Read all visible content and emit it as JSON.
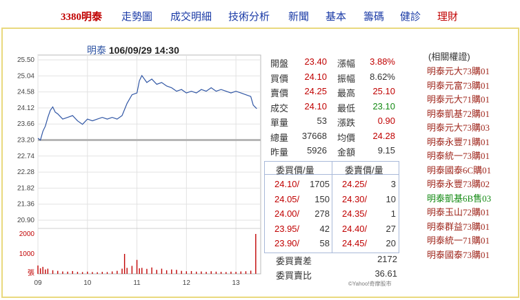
{
  "nav": {
    "items": [
      {
        "label": "3380明泰",
        "style": "active"
      },
      {
        "label": "走勢圖",
        "style": "blue"
      },
      {
        "label": "成交明細",
        "style": "blue"
      },
      {
        "label": "技術分析",
        "style": "blue"
      },
      {
        "label": "新聞",
        "style": "blue"
      },
      {
        "label": "基本",
        "style": "blue"
      },
      {
        "label": "籌碼",
        "style": "blue"
      },
      {
        "label": "健診",
        "style": "blue"
      },
      {
        "label": "理財",
        "style": "red"
      }
    ]
  },
  "chart_header": {
    "name": "明泰",
    "datetime": "106/09/29 14:30"
  },
  "chart_data": {
    "type": "line",
    "title": "明泰 106/09/29 14:30",
    "price_axis": {
      "ticks": [
        "25.50",
        "25.04",
        "24.58",
        "24.12",
        "23.66",
        "23.20",
        "22.74",
        "22.28",
        "21.82",
        "21.36",
        "20.90"
      ],
      "ylim": [
        20.9,
        25.5
      ]
    },
    "reference_price": 23.2,
    "time_axis": {
      "ticks": [
        "09",
        "10",
        "11",
        "12",
        "13"
      ]
    },
    "volume_axis": {
      "ticks": [
        "2000",
        "1000",
        "張"
      ],
      "ylim": [
        0,
        2000
      ]
    },
    "price_series": [
      [
        9.0,
        23.25
      ],
      [
        9.05,
        23.2
      ],
      [
        9.1,
        23.45
      ],
      [
        9.15,
        23.6
      ],
      [
        9.2,
        23.85
      ],
      [
        9.25,
        24.05
      ],
      [
        9.3,
        24.15
      ],
      [
        9.35,
        24.0
      ],
      [
        9.4,
        23.95
      ],
      [
        9.5,
        23.8
      ],
      [
        9.6,
        23.85
      ],
      [
        9.7,
        23.9
      ],
      [
        9.8,
        23.75
      ],
      [
        9.9,
        23.65
      ],
      [
        10.0,
        23.8
      ],
      [
        10.1,
        23.75
      ],
      [
        10.2,
        23.8
      ],
      [
        10.3,
        23.85
      ],
      [
        10.4,
        23.8
      ],
      [
        10.5,
        23.85
      ],
      [
        10.6,
        23.8
      ],
      [
        10.7,
        23.9
      ],
      [
        10.8,
        24.25
      ],
      [
        10.9,
        24.5
      ],
      [
        11.0,
        24.55
      ],
      [
        11.05,
        24.9
      ],
      [
        11.1,
        25.05
      ],
      [
        11.2,
        24.85
      ],
      [
        11.3,
        24.95
      ],
      [
        11.4,
        24.8
      ],
      [
        11.5,
        24.85
      ],
      [
        11.6,
        24.75
      ],
      [
        11.7,
        24.7
      ],
      [
        11.8,
        24.6
      ],
      [
        11.9,
        24.65
      ],
      [
        12.0,
        24.55
      ],
      [
        12.1,
        24.6
      ],
      [
        12.2,
        24.55
      ],
      [
        12.3,
        24.65
      ],
      [
        12.4,
        24.6
      ],
      [
        12.5,
        24.7
      ],
      [
        12.6,
        24.6
      ],
      [
        12.7,
        24.65
      ],
      [
        12.8,
        24.6
      ],
      [
        12.9,
        24.55
      ],
      [
        13.0,
        24.6
      ],
      [
        13.1,
        24.55
      ],
      [
        13.2,
        24.5
      ],
      [
        13.3,
        24.45
      ],
      [
        13.35,
        24.2
      ],
      [
        13.42,
        24.1
      ]
    ],
    "volume_series": [
      [
        9.0,
        420
      ],
      [
        9.05,
        280
      ],
      [
        9.1,
        350
      ],
      [
        9.15,
        220
      ],
      [
        9.2,
        260
      ],
      [
        9.3,
        180
      ],
      [
        9.4,
        150
      ],
      [
        9.5,
        120
      ],
      [
        9.6,
        110
      ],
      [
        9.7,
        140
      ],
      [
        9.8,
        100
      ],
      [
        9.9,
        90
      ],
      [
        10.0,
        110
      ],
      [
        10.1,
        90
      ],
      [
        10.2,
        80
      ],
      [
        10.3,
        100
      ],
      [
        10.4,
        90
      ],
      [
        10.5,
        120
      ],
      [
        10.6,
        150
      ],
      [
        10.7,
        260
      ],
      [
        10.75,
        1000
      ],
      [
        10.8,
        300
      ],
      [
        10.9,
        400
      ],
      [
        11.0,
        700
      ],
      [
        11.05,
        280
      ],
      [
        11.1,
        300
      ],
      [
        11.2,
        250
      ],
      [
        11.3,
        320
      ],
      [
        11.4,
        200
      ],
      [
        11.5,
        260
      ],
      [
        11.6,
        180
      ],
      [
        11.7,
        220
      ],
      [
        11.8,
        200
      ],
      [
        11.9,
        150
      ],
      [
        12.0,
        130
      ],
      [
        12.1,
        140
      ],
      [
        12.2,
        110
      ],
      [
        12.3,
        120
      ],
      [
        12.4,
        100
      ],
      [
        12.5,
        130
      ],
      [
        12.6,
        110
      ],
      [
        12.7,
        100
      ],
      [
        12.8,
        90
      ],
      [
        12.9,
        110
      ],
      [
        13.0,
        100
      ],
      [
        13.1,
        120
      ],
      [
        13.2,
        130
      ],
      [
        13.3,
        160
      ],
      [
        13.4,
        2000
      ]
    ]
  },
  "quote": {
    "rows": [
      {
        "l1": "開盤",
        "v1": "23.40",
        "c1": "red",
        "l2": "漲幅",
        "v2": "3.88%",
        "c2": "red"
      },
      {
        "l1": "買價",
        "v1": "24.10",
        "c1": "red",
        "l2": "振幅",
        "v2": "8.62%",
        "c2": "blk"
      },
      {
        "l1": "賣價",
        "v1": "24.25",
        "c1": "red",
        "l2": "最高",
        "v2": "25.10",
        "c2": "red"
      },
      {
        "l1": "成交",
        "v1": "24.10",
        "c1": "red",
        "l2": "最低",
        "v2": "23.10",
        "c2": "grn"
      },
      {
        "l1": "單量",
        "v1": "53",
        "c1": "blk",
        "l2": "漲跌",
        "v2": "0.90",
        "c2": "red"
      },
      {
        "l1": "總量",
        "v1": "37668",
        "c1": "blk",
        "l2": "均價",
        "v2": "24.28",
        "c2": "red"
      },
      {
        "l1": "昨量",
        "v1": "5926",
        "c1": "blk",
        "l2": "金額",
        "v2": "9.15",
        "c2": "blk"
      }
    ]
  },
  "order_book": {
    "bid_header": "委買價/量",
    "ask_header": "委賣價/量",
    "rows": [
      {
        "bid_price": "24.10/",
        "bid_qty": "1705",
        "ask_price": "24.25/",
        "ask_qty": "3"
      },
      {
        "bid_price": "24.05/",
        "bid_qty": "150",
        "ask_price": "24.30/",
        "ask_qty": "10"
      },
      {
        "bid_price": "24.00/",
        "bid_qty": "278",
        "ask_price": "24.35/",
        "ask_qty": "1"
      },
      {
        "bid_price": "23.95/",
        "bid_qty": "42",
        "ask_price": "24.40/",
        "ask_qty": "27"
      },
      {
        "bid_price": "23.90/",
        "bid_qty": "58",
        "ask_price": "24.45/",
        "ask_qty": "20"
      }
    ],
    "diff_label": "委買賣差",
    "diff_value": "2172",
    "ratio_label": "委買賣比",
    "ratio_value": "36.61"
  },
  "warrants": {
    "title": "(相關權證)",
    "items": [
      {
        "label": "明泰元大73購01",
        "color": "red"
      },
      {
        "label": "明泰元富73購01",
        "color": "red"
      },
      {
        "label": "明泰元大71購01",
        "color": "red"
      },
      {
        "label": "明泰凱基72購01",
        "color": "red"
      },
      {
        "label": "明泰元大73購03",
        "color": "red"
      },
      {
        "label": "明泰永豐71購01",
        "color": "red"
      },
      {
        "label": "明泰統一73購01",
        "color": "red"
      },
      {
        "label": "明泰國泰6C購01",
        "color": "red"
      },
      {
        "label": "明泰永豐73購02",
        "color": "red"
      },
      {
        "label": "明泰凱基6B售03",
        "color": "grn"
      },
      {
        "label": "明泰玉山72購01",
        "color": "red"
      },
      {
        "label": "明泰群益73購01",
        "color": "red"
      },
      {
        "label": "明泰統一71購01",
        "color": "red"
      },
      {
        "label": "明泰國泰73購01",
        "color": "red"
      }
    ]
  },
  "credit": "©Yahoo!奇摩股市",
  "colors": {
    "accent_red": "#c00000",
    "nav_blue": "#1a3aa6",
    "line_blue": "#2f55a4",
    "frame": "#e9d97d"
  }
}
